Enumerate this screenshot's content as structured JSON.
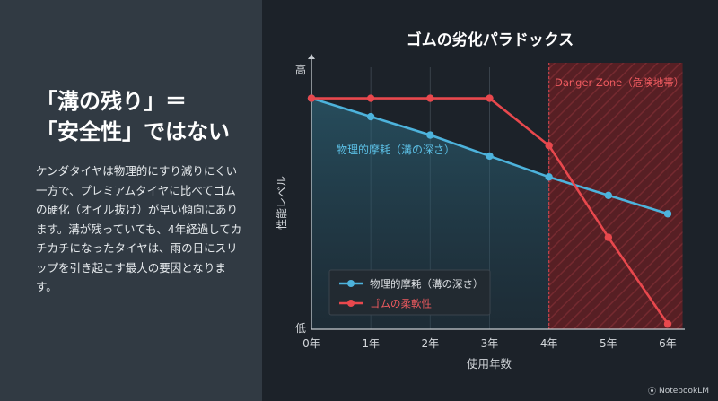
{
  "headline": {
    "line1": "「溝の残り」＝",
    "line2": "「安全性」ではない"
  },
  "body": "ケンダタイヤは物理的にすり減りにくい一方で、プレミアムタイヤに比べてゴムの硬化（オイル抜け）が早い傾向にあります。溝が残っていても、4年経過してカチカチになったタイヤは、雨の日にスリップを引き起こす最大の要因となります。",
  "brand": "NotebookLM",
  "colors": {
    "blue": "#4db3dc",
    "red": "#e8484d",
    "danger_fill": "#5a1f24"
  },
  "chart_data": {
    "type": "line",
    "title": "ゴムの劣化パラドックス",
    "xlabel": "使用年数",
    "ylabel": "性能レベル",
    "y_tick_high": "高",
    "y_tick_low": "低",
    "categories": [
      "0年",
      "1年",
      "2年",
      "3年",
      "4年",
      "5年",
      "6年"
    ],
    "x": [
      0,
      1,
      2,
      3,
      4,
      5,
      6
    ],
    "ylim": [
      0,
      100
    ],
    "series": [
      {
        "name": "物理的摩耗（溝の深さ）",
        "color": "#4db3dc",
        "values": [
          88,
          81,
          74,
          66,
          58,
          51,
          44
        ]
      },
      {
        "name": "ゴムの柔軟性",
        "color": "#e8484d",
        "values": [
          88,
          88,
          88,
          88,
          70,
          35,
          2
        ]
      }
    ],
    "danger_zone": {
      "from": 4,
      "to": 6.25,
      "label": "Danger Zone（危険地帯）"
    },
    "annotation": {
      "text": "物理的摩耗（溝の深さ）",
      "x": 0.4,
      "y": 68
    },
    "legend": "bottom-left",
    "grid": true
  }
}
